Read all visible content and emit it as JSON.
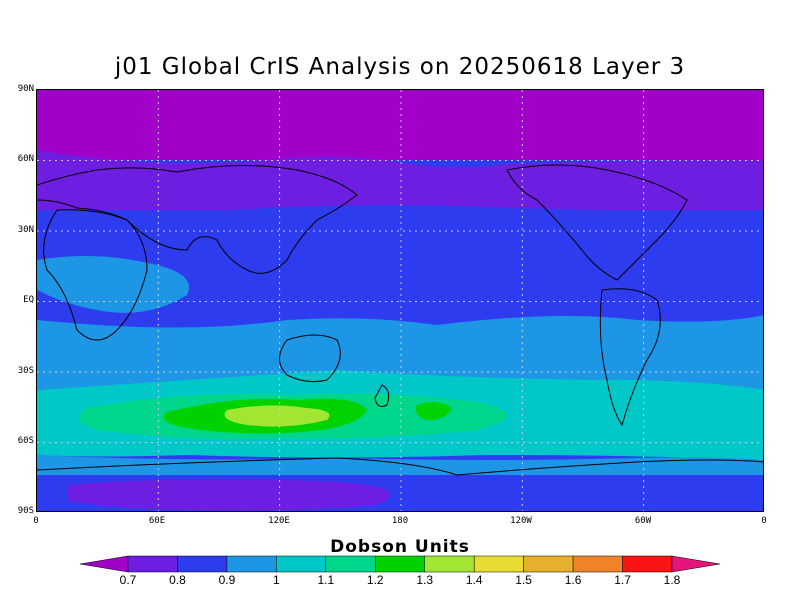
{
  "title": "j01 Global CrIS Analysis on 20250618 Layer 3",
  "lat_ticks": [
    "90N",
    "60N",
    "30N",
    "EQ",
    "30S",
    "60S",
    "90S"
  ],
  "lon_ticks": [
    "0",
    "60E",
    "120E",
    "180",
    "120W",
    "60W",
    "0"
  ],
  "colorbar": {
    "title": "Dobson Units",
    "labels": [
      "0.7",
      "0.8",
      "0.9",
      "1",
      "1.1",
      "1.2",
      "1.3",
      "1.4",
      "1.5",
      "1.6",
      "1.7",
      "1.8"
    ],
    "colors": [
      "#a000c8",
      "#6e1ee0",
      "#2e3cf0",
      "#1e96e6",
      "#00c8c8",
      "#00d78c",
      "#00d200",
      "#a0e632",
      "#e6dc32",
      "#e6af2d",
      "#f08228",
      "#fa1414",
      "#e6147a"
    ]
  },
  "map_colors": {
    "background": "#2e3cf0",
    "ocean_grid": "#c8c8ff",
    "coast": "#000000"
  }
}
